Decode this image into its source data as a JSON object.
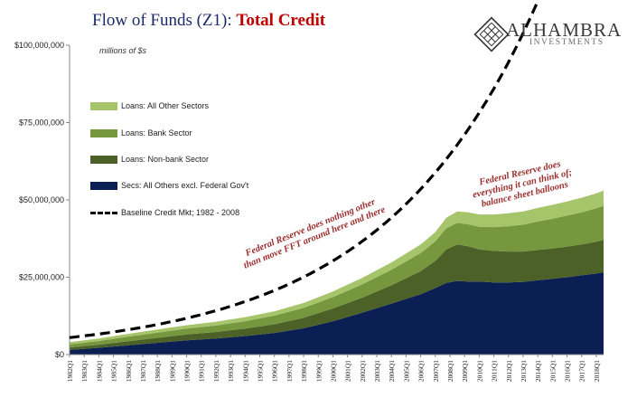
{
  "header": {
    "title_main": "Flow of Funds (Z1): ",
    "title_accent": "Total Credit",
    "logo_name": "ALHAMBRA",
    "logo_sub": "INVESTMENTS",
    "units": "millions of $s"
  },
  "annotations": {
    "left_line1": "Federal Reserve does nothing other",
    "left_line2": "than move FFT around here and there",
    "right_line1": "Federal Reserve does",
    "right_line2": "everything it can think of;",
    "right_line3": "balance sheet balloons"
  },
  "colors": {
    "all_other_sectors": "#a6c56b",
    "bank_sector": "#76973d",
    "non_bank_sector": "#4b6127",
    "secs_excl_fed": "#0b1f55",
    "title_blue": "#1b2a6b",
    "title_red": "#c00000",
    "annotation": "#9b2d2d"
  },
  "chart_data": {
    "type": "area",
    "stacked": true,
    "units": "millions of $s",
    "ylim": [
      0,
      100000000
    ],
    "yticks": [
      0,
      25000000,
      50000000,
      75000000,
      100000000
    ],
    "ytick_labels": [
      "$0",
      "$25,000,000",
      "$50,000,000",
      "$75,000,000",
      "$100,000,000"
    ],
    "xlim": [
      1982,
      2018.5
    ],
    "xtick_labels": [
      "1982Q1",
      "1983Q1",
      "1984Q1",
      "1985Q1",
      "1986Q1",
      "1987Q1",
      "1988Q1",
      "1989Q1",
      "1990Q1",
      "1991Q1",
      "1992Q1",
      "1993Q1",
      "1994Q1",
      "1995Q1",
      "1996Q1",
      "1997Q1",
      "1998Q1",
      "1999Q1",
      "2000Q1",
      "2001Q1",
      "2002Q1",
      "2003Q1",
      "2004Q1",
      "2005Q1",
      "2006Q1",
      "2007Q1",
      "2008Q1",
      "2009Q1",
      "2010Q1",
      "2011Q1",
      "2012Q1",
      "2013Q1",
      "2014Q1",
      "2015Q1",
      "2016Q1",
      "2017Q1",
      "2018Q1"
    ],
    "x": [
      1982,
      1984,
      1986,
      1988,
      1990,
      1992,
      1994,
      1996,
      1998,
      2000,
      2002,
      2004,
      2006,
      2007,
      2007.75,
      2008.5,
      2009.25,
      2010,
      2011,
      2012,
      2013,
      2014,
      2015,
      2016,
      2017,
      2018,
      2018.5
    ],
    "series": [
      {
        "name": "Secs: All Others excl. Federal Gov't",
        "values": [
          1500000,
          2200000,
          3000000,
          3800000,
          4600000,
          5200000,
          6000000,
          7000000,
          8500000,
          10800000,
          13500000,
          16500000,
          19500000,
          21500000,
          23200000,
          23800000,
          23600000,
          23600000,
          23300000,
          23300000,
          23500000,
          24000000,
          24500000,
          25000000,
          25600000,
          26200000,
          26600000
        ]
      },
      {
        "name": "Loans: Non-bank Sector",
        "values": [
          800000,
          1000000,
          1300000,
          1600000,
          1900000,
          2100000,
          2400000,
          2800000,
          3400000,
          4100000,
          4900000,
          5900000,
          7500000,
          8800000,
          10800000,
          11800000,
          11400000,
          10400000,
          10200000,
          10000000,
          9800000,
          9800000,
          9800000,
          9900000,
          10000000,
          10300000,
          10500000
        ]
      },
      {
        "name": "Loans: Bank Sector",
        "values": [
          1000000,
          1200000,
          1500000,
          1700000,
          1900000,
          2100000,
          2400000,
          2800000,
          3200000,
          3700000,
          4300000,
          5000000,
          5800000,
          6300000,
          6800000,
          7000000,
          7100000,
          7300000,
          7700000,
          8200000,
          8700000,
          9200000,
          9600000,
          10000000,
          10400000,
          10800000,
          11000000
        ]
      },
      {
        "name": "Loans: All Other Sectors",
        "values": [
          700000,
          800000,
          900000,
          1000000,
          1100000,
          1200000,
          1300000,
          1400000,
          1600000,
          1800000,
          2100000,
          2400000,
          2800000,
          3000000,
          3400000,
          3700000,
          3900000,
          4000000,
          4100000,
          4200000,
          4300000,
          4400000,
          4500000,
          4600000,
          4700000,
          4800000,
          4900000
        ]
      }
    ],
    "baseline": {
      "name": "Baseline Credit Mkt; 1982 - 2008",
      "growth_rate": 0.0948,
      "start_value": 5500000,
      "x_range": [
        1982,
        2015.3
      ]
    },
    "legend_order": [
      "Loans: All Other Sectors",
      "Loans: Bank Sector",
      "Loans: Non-bank Sector",
      "Secs: All Others excl. Federal Gov't",
      "Baseline Credit Mkt; 1982 - 2008"
    ],
    "grid": false
  }
}
